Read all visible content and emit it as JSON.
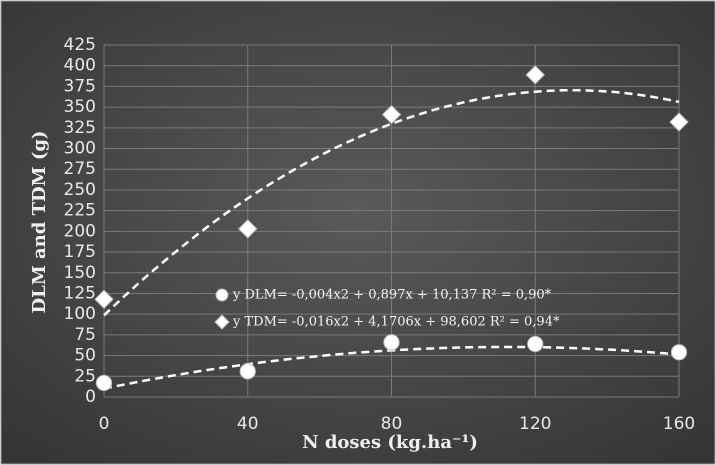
{
  "chart_data": {
    "type": "scatter",
    "x_label": "N doses (kg.ha⁻¹)",
    "y_label": "DLM and TDM (g)",
    "x": [
      0,
      40,
      80,
      120,
      160
    ],
    "series": [
      {
        "name": "y DLM= -0,004x2 + 0,897x + 10,137  R² = 0,90*",
        "marker": "circle",
        "color": "#ffffff",
        "values": [
          17,
          31,
          66,
          64,
          54
        ],
        "trend": [
          -0.004,
          0.897,
          10.137
        ]
      },
      {
        "name": "y TDM= -0,016x2 + 4,1706x + 98,602  R² = 0,94*",
        "marker": "diamond",
        "color": "#ffffff",
        "values": [
          118,
          203,
          341,
          389,
          332
        ],
        "trend": [
          -0.016,
          4.1706,
          98.602
        ]
      }
    ],
    "xlim": [
      0,
      160
    ],
    "xticks": [
      0,
      40,
      80,
      120,
      160
    ],
    "ylim": [
      0,
      425
    ],
    "yticks": [
      0,
      25,
      50,
      75,
      100,
      125,
      150,
      175,
      200,
      225,
      250,
      275,
      300,
      325,
      350,
      375,
      400,
      425
    ],
    "grid": true
  }
}
